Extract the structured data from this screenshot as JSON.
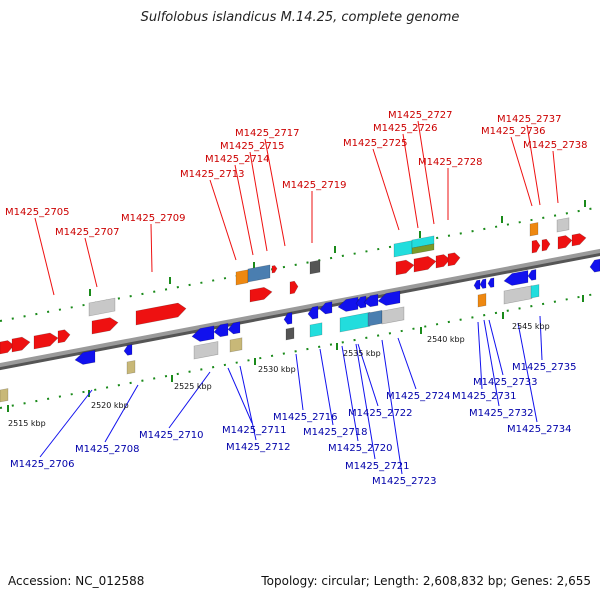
{
  "title": "Sulfolobus islandicus M.14.25, complete genome",
  "footer": {
    "accession": "Accession: NC_012588",
    "summary": "Topology: circular; Length: 2,608,832 bp; Genes: 2,655"
  },
  "colors": {
    "forward": "#ee1111",
    "reverse": "#1111ee",
    "backbone": "#888888",
    "tick": "#1a8a1a",
    "forward_label": "#cc0000",
    "reverse_label": "#0000aa",
    "grey_gene": "#c8c8c8",
    "cyan_gene": "#22dddd",
    "orange_gene": "#ee8811",
    "steel_gene": "#4a7eb0",
    "dark_gene": "#555555",
    "khaki_gene": "#c8b878",
    "olive_gene": "#7a9a2a"
  },
  "axis": {
    "tick_labels": [
      "2515 kbp",
      "2520 kbp",
      "2525 kbp",
      "2530 kbp",
      "2535 kbp",
      "2540 kbp",
      "2545 kbp"
    ]
  },
  "forward_labels": [
    "M1425_2705",
    "M1425_2707",
    "M1425_2709",
    "M1425_2713",
    "M1425_2714",
    "M1425_2715",
    "M1425_2717",
    "M1425_2719",
    "M1425_2725",
    "M1425_2726",
    "M1425_2727",
    "M1425_2728",
    "M1425_2736",
    "M1425_2737",
    "M1425_2738"
  ],
  "reverse_labels": [
    "M1425_2706",
    "M1425_2708",
    "M1425_2710",
    "M1425_2711",
    "M1425_2712",
    "M1425_2716",
    "M1425_2718",
    "M1425_2720",
    "M1425_2721",
    "M1425_2722",
    "M1425_2723",
    "M1425_2724",
    "M1425_2731",
    "M1425_2732",
    "M1425_2733",
    "M1425_2734",
    "M1425_2735"
  ]
}
